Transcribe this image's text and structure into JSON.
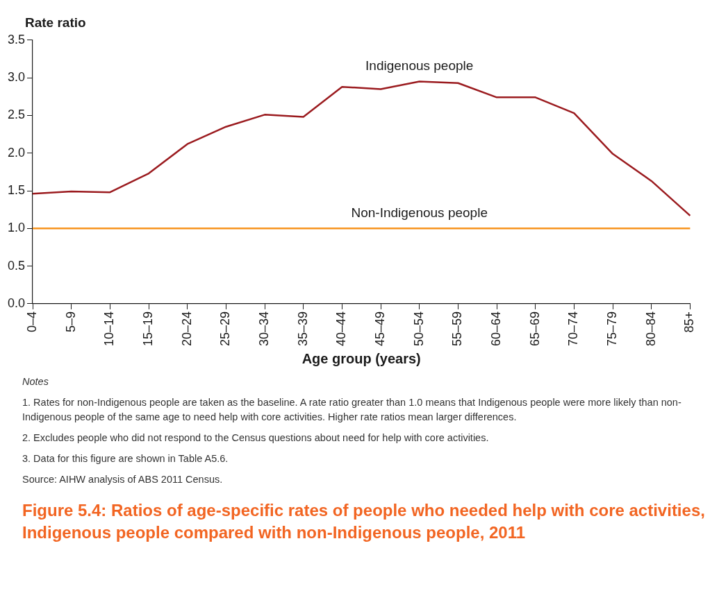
{
  "chart_data": {
    "type": "line",
    "title": "Figure 5.4: Ratios of age-specific rates of people who needed help with core activities, Indigenous people compared with non-Indigenous people, 2011",
    "ylabel": "Rate ratio",
    "xlabel": "Age group (years)",
    "categories": [
      "0–4",
      "5–9",
      "10–14",
      "15–19",
      "20–24",
      "25–29",
      "30–34",
      "35–39",
      "40–44",
      "45–49",
      "50–54",
      "55–59",
      "60–64",
      "65–69",
      "70–74",
      "75–79",
      "80–84",
      "85+"
    ],
    "series": [
      {
        "name": "Indigenous people",
        "color": "#9b1b1f",
        "values": [
          1.46,
          1.49,
          1.48,
          1.73,
          2.12,
          2.35,
          2.51,
          2.48,
          2.88,
          2.85,
          2.95,
          2.93,
          2.74,
          2.74,
          2.53,
          1.99,
          1.63,
          1.17
        ]
      },
      {
        "name": "Non-Indigenous people",
        "color": "#f7941d",
        "values": [
          1.0,
          1.0,
          1.0,
          1.0,
          1.0,
          1.0,
          1.0,
          1.0,
          1.0,
          1.0,
          1.0,
          1.0,
          1.0,
          1.0,
          1.0,
          1.0,
          1.0,
          1.0
        ]
      }
    ],
    "ylim": [
      0,
      3.5
    ],
    "yticks": [
      {
        "value": 0,
        "label": "0.0"
      },
      0.5,
      {
        "value": 1,
        "label": "1.0"
      },
      1.5,
      {
        "value": 2,
        "label": "2.0"
      },
      2.5,
      {
        "value": 3,
        "label": "3.0"
      },
      3.5
    ],
    "grid": false,
    "legend": false,
    "marker": "none",
    "line_style": "solid",
    "annotations": [
      "Notes",
      "1. Rates for non-Indigenous people are taken as the baseline. A rate ratio greater than 1.0 means that Indigenous people were more likely than non-Indigenous people of the same age to need help with core activities. Higher rate ratios mean larger differences.",
      "2. Excludes people who did not respond to the Census questions about need for help with core activities.",
      "3. Data for this figure are shown in Table A5.6.",
      "Source: AIHW analysis of ABS 2011 Census."
    ]
  }
}
